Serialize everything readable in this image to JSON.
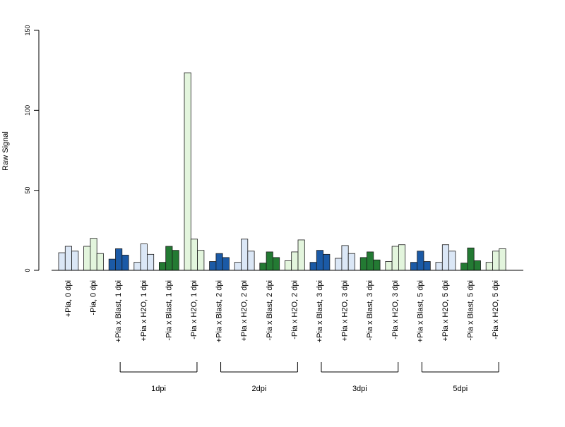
{
  "chart_data": {
    "type": "bar",
    "title": "",
    "xlabel": "",
    "ylabel": "Raw Signal",
    "ylim": [
      0,
      150
    ],
    "yticks": [
      0,
      50,
      100,
      150
    ],
    "grid": false,
    "legend": "none",
    "bars_per_category": 3,
    "categories": [
      "+Pia, 0 dpi",
      "-Pia, 0 dpi",
      "+Pia x Blast, 1 dpi",
      "+Pia x H2O, 1 dpi",
      "-Pia x Blast, 1 dpi",
      "-Pia x H2O, 1 dpi",
      "+Pia x Blast, 2 dpi",
      "+Pia x H2O, 2 dpi",
      "-Pia x Blast, 2 dpi",
      "-Pia x H2O, 2 dpi",
      "+Pia x Blast, 3 dpi",
      "+Pia x H2O, 3 dpi",
      "-Pia x Blast, 3 dpi",
      "-Pia x H2O, 3 dpi",
      "+Pia x Blast, 5 dpi",
      "+Pia x H2O, 5 dpi",
      "-Pia x Blast, 5 dpi",
      "-Pia x H2O, 5 dpi"
    ],
    "values": [
      [
        11,
        15,
        12
      ],
      [
        15,
        20,
        10.5
      ],
      [
        7,
        13.5,
        9.5
      ],
      [
        5,
        16.5,
        10
      ],
      [
        5,
        15,
        12.5
      ],
      [
        123.5,
        19.5,
        12.5
      ],
      [
        5.5,
        10.5,
        8
      ],
      [
        5,
        19.5,
        12
      ],
      [
        4.5,
        11.5,
        8
      ],
      [
        6,
        11.5,
        19
      ],
      [
        5,
        12.5,
        10
      ],
      [
        7.5,
        15.5,
        10.5
      ],
      [
        8,
        11.5,
        6.5
      ],
      [
        5.5,
        15,
        16
      ],
      [
        5,
        12,
        5.5
      ],
      [
        5,
        16,
        12
      ],
      [
        4.5,
        14,
        6
      ],
      [
        5,
        12,
        13.5
      ]
    ],
    "category_colors": [
      "#dbe7f6",
      "#e3f5dd",
      "#1b5aa6",
      "#dbe7f6",
      "#237a33",
      "#e3f5dd",
      "#1b5aa6",
      "#dbe7f6",
      "#237a33",
      "#e3f5dd",
      "#1b5aa6",
      "#dbe7f6",
      "#237a33",
      "#e3f5dd",
      "#1b5aa6",
      "#dbe7f6",
      "#237a33",
      "#e3f5dd"
    ],
    "groups": [
      {
        "label": "1dpi",
        "first": 2,
        "last": 5
      },
      {
        "label": "2dpi",
        "first": 6,
        "last": 9
      },
      {
        "label": "3dpi",
        "first": 10,
        "last": 13
      },
      {
        "label": "5dpi",
        "first": 14,
        "last": 17
      }
    ]
  }
}
